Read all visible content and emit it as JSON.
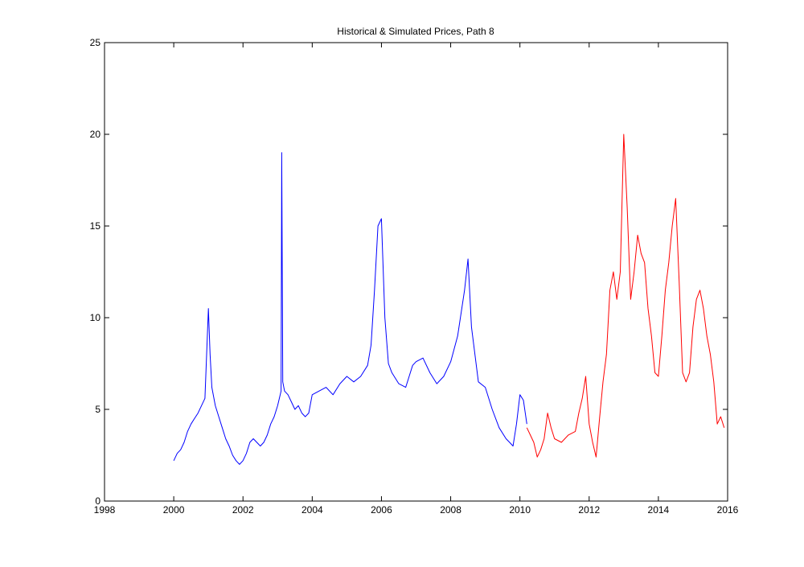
{
  "chart_data": {
    "type": "line",
    "title": "Historical & Simulated Prices, Path 8",
    "xlabel": "",
    "ylabel": "",
    "xlim": [
      1998,
      2016
    ],
    "ylim": [
      0,
      25
    ],
    "x_ticks": [
      "1998",
      "2000",
      "2002",
      "2004",
      "2006",
      "2008",
      "2010",
      "2012",
      "2014",
      "2016"
    ],
    "y_ticks": [
      "0",
      "5",
      "10",
      "15",
      "20",
      "25"
    ],
    "grid": false,
    "legend": "none",
    "series": [
      {
        "color": "#0000ff",
        "x": [
          2000.0,
          2000.1,
          2000.2,
          2000.3,
          2000.4,
          2000.5,
          2000.6,
          2000.7,
          2000.8,
          2000.9,
          2001.0,
          2001.05,
          2001.1,
          2001.2,
          2001.3,
          2001.4,
          2001.5,
          2001.6,
          2001.7,
          2001.8,
          2001.9,
          2002.0,
          2002.1,
          2002.2,
          2002.3,
          2002.4,
          2002.5,
          2002.6,
          2002.7,
          2002.8,
          2002.9,
          2003.0,
          2003.1,
          2003.12,
          2003.15,
          2003.2,
          2003.3,
          2003.4,
          2003.5,
          2003.6,
          2003.7,
          2003.8,
          2003.9,
          2004.0,
          2004.2,
          2004.4,
          2004.6,
          2004.8,
          2005.0,
          2005.2,
          2005.4,
          2005.6,
          2005.7,
          2005.8,
          2005.9,
          2006.0,
          2006.1,
          2006.2,
          2006.3,
          2006.5,
          2006.7,
          2006.8,
          2006.9,
          2007.0,
          2007.2,
          2007.4,
          2007.6,
          2007.8,
          2008.0,
          2008.2,
          2008.4,
          2008.5,
          2008.6,
          2008.8,
          2009.0,
          2009.2,
          2009.4,
          2009.6,
          2009.7,
          2009.8,
          2009.9,
          2010.0,
          2010.1,
          2010.2
        ],
        "y": [
          2.2,
          2.6,
          2.8,
          3.2,
          3.8,
          4.2,
          4.5,
          4.8,
          5.2,
          5.6,
          10.5,
          8.0,
          6.2,
          5.2,
          4.6,
          4.0,
          3.4,
          3.0,
          2.5,
          2.2,
          2.0,
          2.2,
          2.6,
          3.2,
          3.4,
          3.2,
          3.0,
          3.2,
          3.6,
          4.2,
          4.6,
          5.2,
          6.0,
          19.0,
          6.5,
          6.0,
          5.8,
          5.4,
          5.0,
          5.2,
          4.8,
          4.6,
          4.8,
          5.8,
          6.0,
          6.2,
          5.8,
          6.4,
          6.8,
          6.5,
          6.8,
          7.4,
          8.5,
          11.5,
          15.0,
          15.4,
          10.0,
          7.5,
          7.0,
          6.4,
          6.2,
          6.8,
          7.4,
          7.6,
          7.8,
          7.0,
          6.4,
          6.8,
          7.6,
          9.0,
          11.5,
          13.2,
          9.5,
          6.5,
          6.2,
          5.0,
          4.0,
          3.4,
          3.2,
          3.0,
          4.2,
          5.8,
          5.5,
          4.2
        ]
      },
      {
        "color": "#ff0000",
        "x": [
          2010.2,
          2010.3,
          2010.4,
          2010.5,
          2010.6,
          2010.7,
          2010.8,
          2010.9,
          2011.0,
          2011.2,
          2011.4,
          2011.6,
          2011.7,
          2011.8,
          2011.9,
          2012.0,
          2012.1,
          2012.2,
          2012.3,
          2012.4,
          2012.5,
          2012.6,
          2012.7,
          2012.8,
          2012.9,
          2013.0,
          2013.1,
          2013.2,
          2013.3,
          2013.4,
          2013.5,
          2013.6,
          2013.7,
          2013.8,
          2013.9,
          2014.0,
          2014.1,
          2014.2,
          2014.3,
          2014.4,
          2014.5,
          2014.6,
          2014.7,
          2014.8,
          2014.9,
          2015.0,
          2015.1,
          2015.2,
          2015.3,
          2015.4,
          2015.5,
          2015.6,
          2015.7,
          2015.8,
          2015.9
        ],
        "y": [
          4.0,
          3.6,
          3.2,
          2.4,
          2.8,
          3.4,
          4.8,
          4.0,
          3.4,
          3.2,
          3.6,
          3.8,
          4.8,
          5.6,
          6.8,
          4.2,
          3.2,
          2.4,
          4.5,
          6.5,
          8.0,
          11.5,
          12.5,
          11.0,
          12.5,
          20.0,
          16.0,
          11.0,
          12.5,
          14.5,
          13.5,
          13.0,
          10.5,
          9.0,
          7.0,
          6.8,
          9.0,
          11.5,
          13.0,
          15.0,
          16.5,
          12.0,
          7.0,
          6.5,
          7.0,
          9.5,
          11.0,
          11.5,
          10.5,
          9.0,
          8.0,
          6.5,
          4.2,
          4.6,
          4.0
        ]
      }
    ]
  }
}
